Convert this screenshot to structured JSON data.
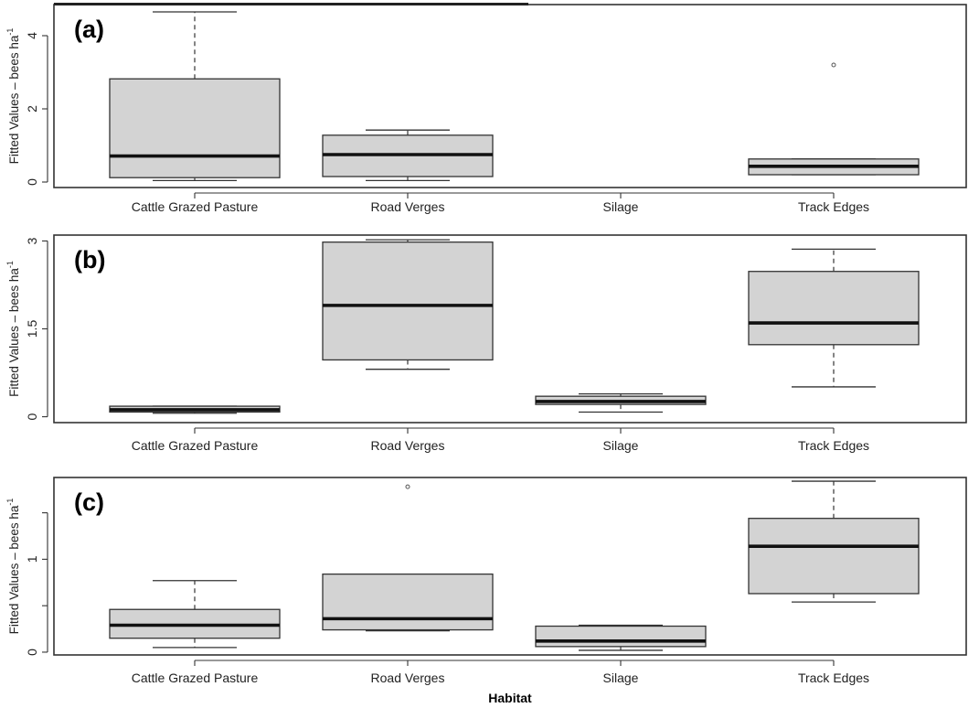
{
  "chart_data": [
    {
      "type": "box",
      "panel_label": "(a)",
      "ylabel": "Fitted Values – bees ha",
      "ylabel_superscript": "-1",
      "categories": [
        "Cattle Grazed Pasture",
        "Road Verges",
        "Silage",
        "Track Edges"
      ],
      "ylim": [
        -0.15,
        4.85
      ],
      "yticks": [
        0,
        2,
        4
      ],
      "boxes": [
        {
          "category": "Cattle Grazed Pasture",
          "min": 0.04,
          "q1": 0.12,
          "median": 0.71,
          "q3": 2.82,
          "max": 4.65,
          "outliers": []
        },
        {
          "category": "Road Verges",
          "min": 0.04,
          "q1": 0.15,
          "median": 0.75,
          "q3": 1.28,
          "max": 1.42,
          "outliers": []
        },
        {
          "category": "Silage"
        },
        {
          "category": "Track Edges",
          "min": 0.2,
          "q1": 0.2,
          "median": 0.43,
          "q3": 0.63,
          "max": 0.63,
          "outliers": [
            3.2
          ]
        }
      ]
    },
    {
      "type": "box",
      "panel_label": "(b)",
      "ylabel": "Fitted Values – bees ha",
      "ylabel_superscript": "-1",
      "categories": [
        "Cattle Grazed Pasture",
        "Road Verges",
        "Silage",
        "Track Edges"
      ],
      "ylim": [
        -0.1,
        3.1
      ],
      "yticks": [
        0,
        1.5,
        3
      ],
      "ytick_labels": [
        "0",
        "1.5",
        "3"
      ],
      "boxes": [
        {
          "category": "Cattle Grazed Pasture",
          "min": 0.06,
          "q1": 0.08,
          "median": 0.12,
          "q3": 0.18,
          "max": 0.18,
          "outliers": []
        },
        {
          "category": "Road Verges",
          "min": 0.81,
          "q1": 0.97,
          "median": 1.9,
          "q3": 2.98,
          "max": 3.02,
          "outliers": []
        },
        {
          "category": "Silage",
          "min": 0.08,
          "q1": 0.21,
          "median": 0.26,
          "q3": 0.35,
          "max": 0.39,
          "outliers": []
        },
        {
          "category": "Track Edges",
          "min": 0.51,
          "q1": 1.23,
          "median": 1.6,
          "q3": 2.48,
          "max": 2.86,
          "outliers": []
        }
      ]
    },
    {
      "type": "box",
      "panel_label": "(c)",
      "ylabel": "Fitted Values – bees ha",
      "ylabel_superscript": "-1",
      "xlabel": "Habitat",
      "categories": [
        "Cattle Grazed Pasture",
        "Road Verges",
        "Silage",
        "Track Edges"
      ],
      "ylim": [
        -0.03,
        1.88
      ],
      "yticks": [
        0,
        0.5,
        1,
        1.5
      ],
      "ytick_labels": [
        "0",
        "",
        "1",
        ""
      ],
      "boxes": [
        {
          "category": "Cattle Grazed Pasture",
          "min": 0.05,
          "q1": 0.15,
          "median": 0.29,
          "q3": 0.46,
          "max": 0.77,
          "outliers": []
        },
        {
          "category": "Road Verges",
          "min": 0.23,
          "q1": 0.24,
          "median": 0.36,
          "q3": 0.84,
          "max": 0.84,
          "outliers": [
            1.78
          ]
        },
        {
          "category": "Silage",
          "min": 0.02,
          "q1": 0.06,
          "median": 0.12,
          "q3": 0.28,
          "max": 0.29,
          "outliers": []
        },
        {
          "category": "Track Edges",
          "min": 0.54,
          "q1": 0.63,
          "median": 1.14,
          "q3": 1.44,
          "max": 1.84,
          "outliers": []
        }
      ]
    }
  ]
}
